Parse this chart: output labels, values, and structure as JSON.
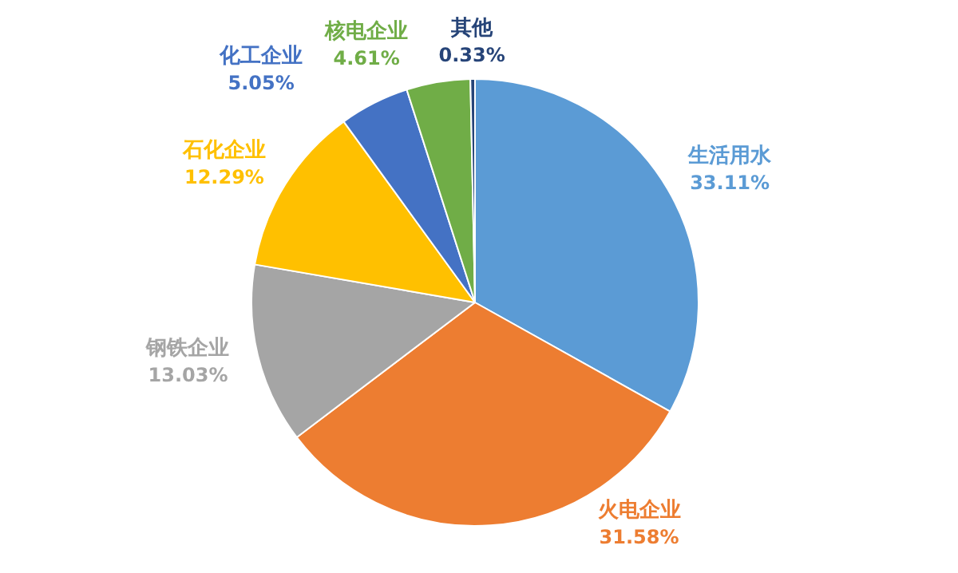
{
  "chart_data": {
    "type": "pie",
    "categories": [
      "生活用水",
      "火电企业",
      "钢铁企业",
      "石化企业",
      "化工企业",
      "核电企业",
      "其他"
    ],
    "values": [
      33.11,
      31.58,
      13.03,
      12.29,
      5.05,
      4.61,
      0.33
    ],
    "colors": [
      "#5b9bd5",
      "#ed7d31",
      "#a5a5a5",
      "#ffc000",
      "#4472c4",
      "#70ad47",
      "#264478"
    ],
    "value_labels": [
      "33.11%",
      "31.58%",
      "13.03%",
      "12.29%",
      "5.05%",
      "4.61%",
      "0.33%"
    ]
  }
}
